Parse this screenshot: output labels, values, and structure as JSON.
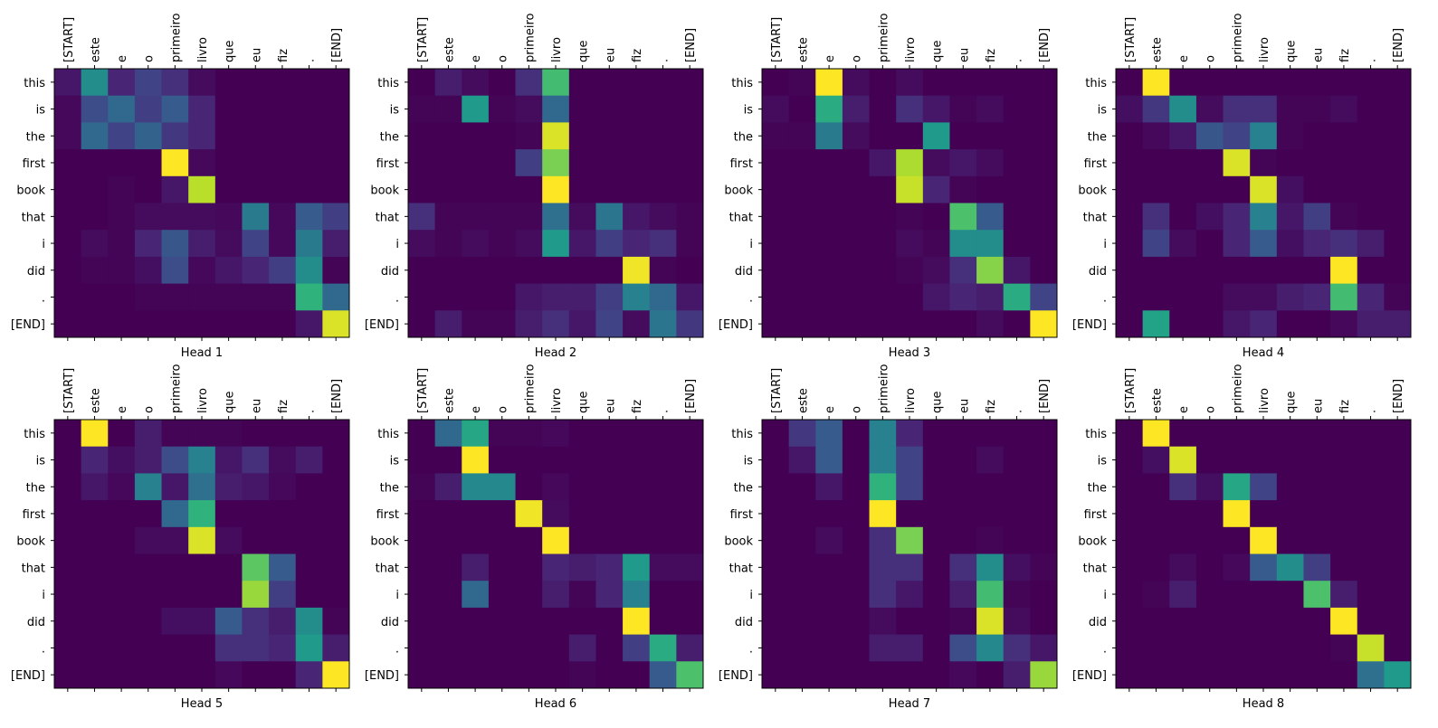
{
  "chart_data": [
    {
      "type": "heatmap",
      "title": "Head 1",
      "colormap": "viridis",
      "x_categories": [
        "[START]",
        "este",
        "e",
        "o",
        "primeiro",
        "livro",
        "que",
        "eu",
        "fiz",
        ".",
        "[END]"
      ],
      "y_categories": [
        "this",
        "is",
        "the",
        "first",
        "book",
        "that",
        "i",
        "did",
        ".",
        "[END]"
      ],
      "values": [
        [
          0.08,
          0.5,
          0.12,
          0.22,
          0.15,
          0.05,
          0.02,
          0.02,
          0.02,
          0.02,
          0.02
        ],
        [
          0.04,
          0.25,
          0.35,
          0.2,
          0.3,
          0.12,
          0.02,
          0.02,
          0.02,
          0.02,
          0.02
        ],
        [
          0.04,
          0.35,
          0.22,
          0.33,
          0.18,
          0.12,
          0.02,
          0.02,
          0.02,
          0.02,
          0.02
        ],
        [
          0.02,
          0.02,
          0.02,
          0.02,
          1,
          0.04,
          0.02,
          0.02,
          0.02,
          0.02,
          0.02
        ],
        [
          0.02,
          0.02,
          0.03,
          0.02,
          0.08,
          0.9,
          0.02,
          0.02,
          0.02,
          0.02,
          0.02
        ],
        [
          0.02,
          0.02,
          0.03,
          0.05,
          0.05,
          0.05,
          0.04,
          0.42,
          0.04,
          0.3,
          0.2
        ],
        [
          0.02,
          0.05,
          0.03,
          0.12,
          0.28,
          0.1,
          0.05,
          0.22,
          0.04,
          0.42,
          0.1
        ],
        [
          0.02,
          0.03,
          0.03,
          0.06,
          0.25,
          0.04,
          0.08,
          0.12,
          0.2,
          0.5,
          0.03
        ],
        [
          0.02,
          0.02,
          0.02,
          0.03,
          0.03,
          0.03,
          0.03,
          0.03,
          0.03,
          0.65,
          0.35
        ],
        [
          0.02,
          0.02,
          0.02,
          0.02,
          0.02,
          0.02,
          0.02,
          0.02,
          0.02,
          0.08,
          0.95
        ]
      ]
    },
    {
      "type": "heatmap",
      "title": "Head 2",
      "colormap": "viridis",
      "x_categories": [
        "[START]",
        "este",
        "e",
        "o",
        "primeiro",
        "livro",
        "que",
        "eu",
        "fiz",
        ".",
        "[END]"
      ],
      "y_categories": [
        "this",
        "is",
        "the",
        "first",
        "book",
        "that",
        "i",
        "did",
        ".",
        "[END]"
      ],
      "values": [
        [
          0.02,
          0.1,
          0.05,
          0.02,
          0.15,
          0.7,
          0.02,
          0.02,
          0.02,
          0.02,
          0.02
        ],
        [
          0.03,
          0.03,
          0.55,
          0.03,
          0.05,
          0.35,
          0.02,
          0.02,
          0.02,
          0.02,
          0.02
        ],
        [
          0.02,
          0.02,
          0.02,
          0.02,
          0.03,
          0.95,
          0.02,
          0.02,
          0.02,
          0.02,
          0.02
        ],
        [
          0.02,
          0.02,
          0.02,
          0.02,
          0.2,
          0.8,
          0.02,
          0.02,
          0.02,
          0.02,
          0.02
        ],
        [
          0.02,
          0.02,
          0.02,
          0.02,
          0.02,
          1,
          0.02,
          0.02,
          0.02,
          0.02,
          0.02
        ],
        [
          0.15,
          0.03,
          0.03,
          0.03,
          0.03,
          0.38,
          0.05,
          0.4,
          0.08,
          0.05,
          0.03
        ],
        [
          0.05,
          0.03,
          0.05,
          0.03,
          0.05,
          0.55,
          0.08,
          0.2,
          0.12,
          0.15,
          0.03
        ],
        [
          0.02,
          0.02,
          0.02,
          0.02,
          0.02,
          0.02,
          0.02,
          0.02,
          0.98,
          0.03,
          0.02
        ],
        [
          0.02,
          0.02,
          0.02,
          0.02,
          0.08,
          0.1,
          0.1,
          0.2,
          0.45,
          0.35,
          0.08
        ],
        [
          0.02,
          0.1,
          0.03,
          0.03,
          0.1,
          0.15,
          0.08,
          0.22,
          0.05,
          0.4,
          0.18
        ]
      ]
    },
    {
      "type": "heatmap",
      "title": "Head 3",
      "colormap": "viridis",
      "x_categories": [
        "[START]",
        "este",
        "e",
        "o",
        "primeiro",
        "livro",
        "que",
        "eu",
        "fiz",
        ".",
        "[END]"
      ],
      "y_categories": [
        "this",
        "is",
        "the",
        "first",
        "book",
        "that",
        "i",
        "did",
        ".",
        "[END]"
      ],
      "values": [
        [
          0.02,
          0.03,
          1,
          0.05,
          0.02,
          0.05,
          0.02,
          0.02,
          0.02,
          0.02,
          0.02
        ],
        [
          0.05,
          0.02,
          0.62,
          0.1,
          0.02,
          0.15,
          0.08,
          0.03,
          0.05,
          0.02,
          0.02
        ],
        [
          0.03,
          0.03,
          0.42,
          0.05,
          0.02,
          0.02,
          0.55,
          0.02,
          0.02,
          0.02,
          0.02
        ],
        [
          0.02,
          0.02,
          0.02,
          0.02,
          0.08,
          0.88,
          0.05,
          0.08,
          0.05,
          0.02,
          0.02
        ],
        [
          0.02,
          0.02,
          0.02,
          0.02,
          0.02,
          0.92,
          0.12,
          0.03,
          0.02,
          0.02,
          0.02
        ],
        [
          0.02,
          0.02,
          0.02,
          0.02,
          0.02,
          0.03,
          0.02,
          0.72,
          0.3,
          0.02,
          0.02
        ],
        [
          0.02,
          0.02,
          0.02,
          0.02,
          0.02,
          0.05,
          0.03,
          0.5,
          0.5,
          0.02,
          0.02
        ],
        [
          0.02,
          0.02,
          0.02,
          0.02,
          0.02,
          0.03,
          0.05,
          0.15,
          0.82,
          0.08,
          0.02
        ],
        [
          0.02,
          0.02,
          0.02,
          0.02,
          0.02,
          0.02,
          0.08,
          0.12,
          0.1,
          0.62,
          0.22
        ],
        [
          0.02,
          0.02,
          0.02,
          0.02,
          0.02,
          0.02,
          0.02,
          0.02,
          0.05,
          0.02,
          1
        ]
      ]
    },
    {
      "type": "heatmap",
      "title": "Head 4",
      "colormap": "viridis",
      "x_categories": [
        "[START]",
        "este",
        "e",
        "o",
        "primeiro",
        "livro",
        "que",
        "eu",
        "fiz",
        ".",
        "[END]"
      ],
      "y_categories": [
        "this",
        "is",
        "the",
        "first",
        "book",
        "that",
        "i",
        "did",
        ".",
        "[END]"
      ],
      "values": [
        [
          0.02,
          1,
          0.02,
          0.02,
          0.02,
          0.02,
          0.02,
          0.02,
          0.02,
          0.02,
          0.02
        ],
        [
          0.06,
          0.18,
          0.5,
          0.05,
          0.15,
          0.15,
          0.03,
          0.03,
          0.05,
          0.02,
          0.02
        ],
        [
          0.02,
          0.04,
          0.08,
          0.28,
          0.22,
          0.45,
          0.03,
          0.02,
          0.02,
          0.02,
          0.02
        ],
        [
          0.02,
          0.02,
          0.02,
          0.02,
          0.95,
          0.03,
          0.02,
          0.02,
          0.02,
          0.02,
          0.02
        ],
        [
          0.02,
          0.02,
          0.02,
          0.02,
          0.02,
          0.95,
          0.06,
          0.02,
          0.02,
          0.02,
          0.02
        ],
        [
          0.02,
          0.15,
          0.02,
          0.06,
          0.12,
          0.45,
          0.08,
          0.2,
          0.03,
          0.02,
          0.02
        ],
        [
          0.02,
          0.22,
          0.05,
          0.02,
          0.12,
          0.3,
          0.06,
          0.12,
          0.15,
          0.1,
          0.02
        ],
        [
          0.02,
          0.02,
          0.02,
          0.02,
          0.02,
          0.02,
          0.02,
          0.02,
          1,
          0.02,
          0.02
        ],
        [
          0.02,
          0.02,
          0.02,
          0.02,
          0.05,
          0.05,
          0.1,
          0.12,
          0.7,
          0.12,
          0.03
        ],
        [
          0.02,
          0.58,
          0.02,
          0.02,
          0.08,
          0.12,
          0.02,
          0.02,
          0.04,
          0.1,
          0.1
        ]
      ]
    },
    {
      "type": "heatmap",
      "title": "Head 5",
      "colormap": "viridis",
      "x_categories": [
        "[START]",
        "este",
        "e",
        "o",
        "primeiro",
        "livro",
        "que",
        "eu",
        "fiz",
        ".",
        "[END]"
      ],
      "y_categories": [
        "this",
        "is",
        "the",
        "first",
        "book",
        "that",
        "i",
        "did",
        ".",
        "[END]"
      ],
      "values": [
        [
          0.02,
          1,
          0.02,
          0.1,
          0.03,
          0.03,
          0.03,
          0.02,
          0.02,
          0.02,
          0.02
        ],
        [
          0.02,
          0.12,
          0.06,
          0.1,
          0.25,
          0.45,
          0.08,
          0.15,
          0.05,
          0.1,
          0.02
        ],
        [
          0.02,
          0.08,
          0.04,
          0.45,
          0.08,
          0.38,
          0.1,
          0.08,
          0.04,
          0.02,
          0.02
        ],
        [
          0.02,
          0.02,
          0.02,
          0.02,
          0.35,
          0.65,
          0.02,
          0.02,
          0.02,
          0.02,
          0.02
        ],
        [
          0.02,
          0.02,
          0.02,
          0.05,
          0.05,
          0.95,
          0.05,
          0.02,
          0.02,
          0.02,
          0.02
        ],
        [
          0.02,
          0.02,
          0.02,
          0.02,
          0.02,
          0.02,
          0.02,
          0.75,
          0.3,
          0.02,
          0.02
        ],
        [
          0.02,
          0.02,
          0.02,
          0.02,
          0.02,
          0.02,
          0.02,
          0.85,
          0.2,
          0.02,
          0.02
        ],
        [
          0.02,
          0.02,
          0.02,
          0.02,
          0.06,
          0.06,
          0.3,
          0.15,
          0.1,
          0.5,
          0.03
        ],
        [
          0.02,
          0.02,
          0.02,
          0.02,
          0.02,
          0.02,
          0.15,
          0.15,
          0.12,
          0.55,
          0.1
        ],
        [
          0.02,
          0.02,
          0.02,
          0.02,
          0.02,
          0.02,
          0.04,
          0.02,
          0.02,
          0.12,
          1
        ]
      ]
    },
    {
      "type": "heatmap",
      "title": "Head 6",
      "colormap": "viridis",
      "x_categories": [
        "[START]",
        "este",
        "e",
        "o",
        "primeiro",
        "livro",
        "que",
        "eu",
        "fiz",
        ".",
        "[END]"
      ],
      "y_categories": [
        "this",
        "is",
        "the",
        "first",
        "book",
        "that",
        "i",
        "did",
        ".",
        "[END]"
      ],
      "values": [
        [
          0.02,
          0.35,
          0.6,
          0.03,
          0.03,
          0.04,
          0.02,
          0.02,
          0.02,
          0.02,
          0.02
        ],
        [
          0.02,
          0.02,
          1,
          0.02,
          0.02,
          0.02,
          0.02,
          0.02,
          0.02,
          0.02,
          0.02
        ],
        [
          0.03,
          0.1,
          0.48,
          0.48,
          0.02,
          0.04,
          0.02,
          0.02,
          0.02,
          0.02,
          0.02
        ],
        [
          0.02,
          0.02,
          0.02,
          0.02,
          0.98,
          0.05,
          0.02,
          0.02,
          0.02,
          0.02,
          0.02
        ],
        [
          0.02,
          0.02,
          0.02,
          0.02,
          0.02,
          1,
          0.02,
          0.02,
          0.02,
          0.02,
          0.02
        ],
        [
          0.02,
          0.02,
          0.1,
          0.02,
          0.02,
          0.12,
          0.1,
          0.12,
          0.55,
          0.05,
          0.05
        ],
        [
          0.02,
          0.02,
          0.35,
          0.02,
          0.02,
          0.1,
          0.03,
          0.12,
          0.45,
          0.02,
          0.02
        ],
        [
          0.02,
          0.02,
          0.02,
          0.02,
          0.02,
          0.02,
          0.02,
          0.02,
          1,
          0.02,
          0.02
        ],
        [
          0.02,
          0.02,
          0.02,
          0.02,
          0.02,
          0.02,
          0.1,
          0.02,
          0.2,
          0.62,
          0.1
        ],
        [
          0.02,
          0.02,
          0.02,
          0.02,
          0.02,
          0.02,
          0.03,
          0.02,
          0.02,
          0.3,
          0.72
        ]
      ]
    },
    {
      "type": "heatmap",
      "title": "Head 7",
      "colormap": "viridis",
      "x_categories": [
        "[START]",
        "este",
        "e",
        "o",
        "primeiro",
        "livro",
        "que",
        "eu",
        "fiz",
        ".",
        "[END]"
      ],
      "y_categories": [
        "this",
        "is",
        "the",
        "first",
        "book",
        "that",
        "i",
        "did",
        ".",
        "[END]"
      ],
      "values": [
        [
          0.02,
          0.18,
          0.3,
          0.02,
          0.45,
          0.12,
          0.02,
          0.02,
          0.02,
          0.02,
          0.02
        ],
        [
          0.02,
          0.08,
          0.3,
          0.02,
          0.45,
          0.22,
          0.02,
          0.02,
          0.05,
          0.02,
          0.02
        ],
        [
          0.02,
          0.02,
          0.08,
          0.02,
          0.65,
          0.22,
          0.02,
          0.02,
          0.02,
          0.02,
          0.02
        ],
        [
          0.02,
          0.02,
          0.02,
          0.02,
          1,
          0.02,
          0.02,
          0.02,
          0.02,
          0.02,
          0.02
        ],
        [
          0.02,
          0.02,
          0.05,
          0.02,
          0.15,
          0.8,
          0.02,
          0.02,
          0.03,
          0.02,
          0.02
        ],
        [
          0.02,
          0.02,
          0.02,
          0.02,
          0.15,
          0.15,
          0.02,
          0.15,
          0.5,
          0.06,
          0.03
        ],
        [
          0.02,
          0.02,
          0.02,
          0.02,
          0.15,
          0.08,
          0.02,
          0.1,
          0.7,
          0.03,
          0.02
        ],
        [
          0.02,
          0.02,
          0.02,
          0.02,
          0.05,
          0.02,
          0.02,
          0.03,
          0.95,
          0.05,
          0.02
        ],
        [
          0.02,
          0.02,
          0.02,
          0.02,
          0.1,
          0.1,
          0.02,
          0.25,
          0.48,
          0.15,
          0.08
        ],
        [
          0.02,
          0.02,
          0.02,
          0.02,
          0.02,
          0.02,
          0.02,
          0.04,
          0.02,
          0.1,
          0.85
        ]
      ]
    },
    {
      "type": "heatmap",
      "title": "Head 8",
      "colormap": "viridis",
      "x_categories": [
        "[START]",
        "este",
        "e",
        "o",
        "primeiro",
        "livro",
        "que",
        "eu",
        "fiz",
        ".",
        "[END]"
      ],
      "y_categories": [
        "this",
        "is",
        "the",
        "first",
        "book",
        "that",
        "i",
        "did",
        ".",
        "[END]"
      ],
      "values": [
        [
          0.02,
          1,
          0.02,
          0.02,
          0.02,
          0.02,
          0.02,
          0.02,
          0.02,
          0.02,
          0.02
        ],
        [
          0.02,
          0.06,
          0.95,
          0.02,
          0.02,
          0.02,
          0.02,
          0.02,
          0.02,
          0.02,
          0.02
        ],
        [
          0.02,
          0.02,
          0.15,
          0.06,
          0.6,
          0.22,
          0.02,
          0.02,
          0.02,
          0.02,
          0.02
        ],
        [
          0.02,
          0.02,
          0.02,
          0.02,
          1,
          0.02,
          0.02,
          0.02,
          0.02,
          0.02,
          0.02
        ],
        [
          0.02,
          0.02,
          0.02,
          0.02,
          0.02,
          1,
          0.02,
          0.02,
          0.02,
          0.02,
          0.02
        ],
        [
          0.02,
          0.02,
          0.05,
          0.02,
          0.04,
          0.3,
          0.5,
          0.2,
          0.02,
          0.02,
          0.02
        ],
        [
          0.02,
          0.03,
          0.1,
          0.02,
          0.02,
          0.02,
          0.02,
          0.72,
          0.1,
          0.02,
          0.02
        ],
        [
          0.02,
          0.02,
          0.02,
          0.02,
          0.02,
          0.02,
          0.02,
          0.02,
          1,
          0.02,
          0.02
        ],
        [
          0.02,
          0.02,
          0.02,
          0.02,
          0.02,
          0.02,
          0.02,
          0.02,
          0.03,
          0.92,
          0.02
        ],
        [
          0.02,
          0.02,
          0.02,
          0.02,
          0.02,
          0.02,
          0.02,
          0.02,
          0.02,
          0.38,
          0.55
        ]
      ]
    }
  ]
}
